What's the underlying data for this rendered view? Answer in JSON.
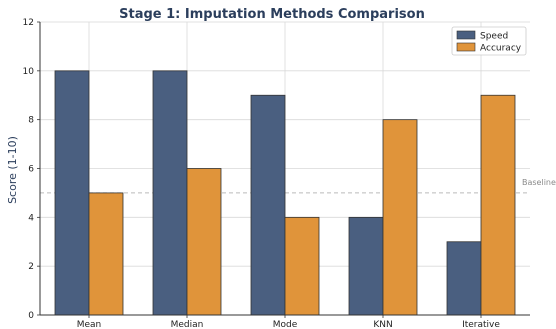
{
  "chart_data": {
    "type": "bar",
    "title": "Stage 1: Imputation Methods Comparison",
    "xlabel": "",
    "ylabel": "Score (1-10)",
    "categories": [
      "Mean",
      "Median",
      "Mode",
      "KNN",
      "Iterative"
    ],
    "series": [
      {
        "name": "Speed",
        "values": [
          10,
          10,
          9,
          4,
          3
        ],
        "color": "#4a5f80"
      },
      {
        "name": "Accuracy",
        "values": [
          5,
          6,
          4,
          8,
          9
        ],
        "color": "#e0943a"
      }
    ],
    "ylim": [
      0,
      12
    ],
    "yticks": [
      0,
      2,
      4,
      6,
      8,
      10,
      12
    ],
    "grid": true,
    "legend_position": "top-right",
    "baseline": {
      "label": "Baseline",
      "value": 5
    },
    "colors": {
      "title": "#2b3e5c",
      "ylabel": "#2b3e5c",
      "grid": "#d9d9d9",
      "baseline": "#bbbbbb",
      "axis": "#333333"
    }
  }
}
